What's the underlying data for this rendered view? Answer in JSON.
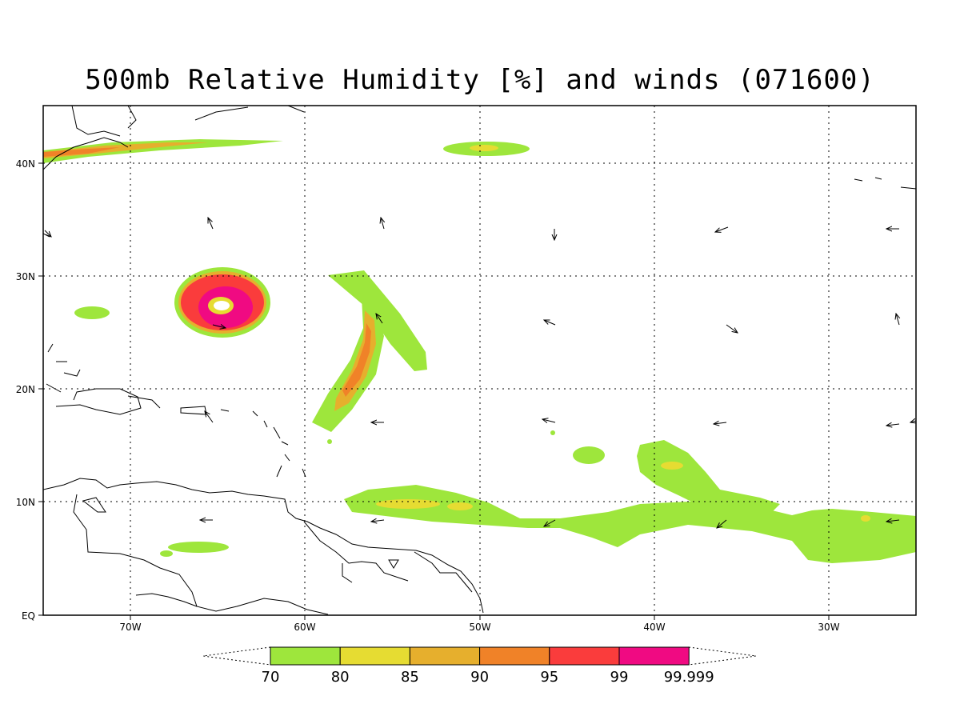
{
  "title": "500mb Relative Humidity [%] and winds (071600)",
  "lon_labels": [
    "70W",
    "60W",
    "50W",
    "40W",
    "30W"
  ],
  "lat_labels": [
    "40N",
    "30N",
    "20N",
    "10N",
    "EQ"
  ],
  "colorbar": {
    "labels": [
      "70",
      "80",
      "85",
      "90",
      "95",
      "99",
      "99.999"
    ],
    "colors": [
      "#9ee63c",
      "#e6dc32",
      "#e6af2d",
      "#f08228",
      "#fa3c3c",
      "#f00a82"
    ]
  },
  "colors": {
    "c70": "#9ee63c",
    "c80": "#e6dc32",
    "c85": "#e6af2d",
    "c90": "#f08228",
    "c95": "#fa3c3c",
    "c99": "#f00a82"
  }
}
